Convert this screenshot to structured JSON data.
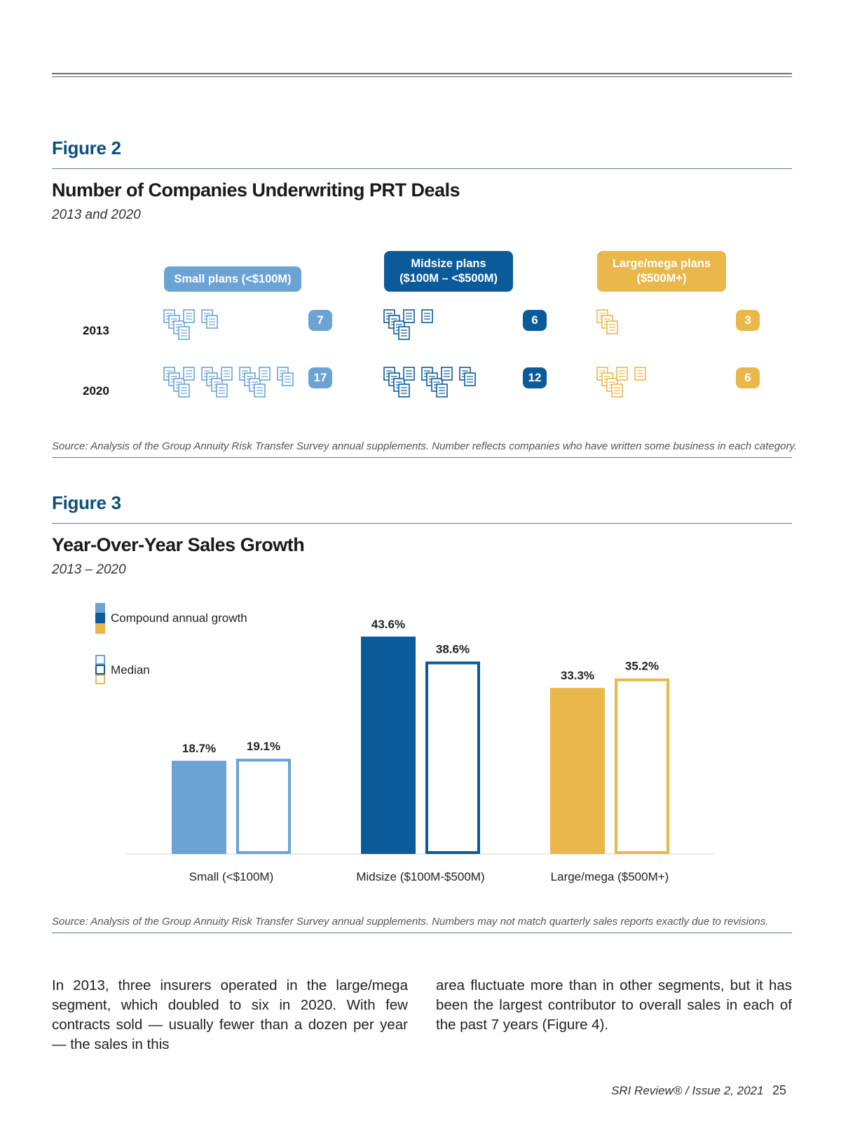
{
  "figure2": {
    "label": "Figure 2",
    "title": "Number of Companies Underwriting PRT Deals",
    "subtitle": "2013 and 2020",
    "categories": [
      {
        "label": "Small plans (<$100M)",
        "color": "#6aa3d4",
        "count_2013": "7",
        "count_2020": "17"
      },
      {
        "label": "Midsize plans\n($100M – <$500M)",
        "color": "#0b5b9a",
        "count_2013": "6",
        "count_2020": "12"
      },
      {
        "label": "Large/mega plans\n($500M+)",
        "color": "#eab84a",
        "count_2013": "3",
        "count_2020": "6"
      }
    ],
    "years": [
      "2013",
      "2020"
    ],
    "source": "Source: Analysis of the Group Annuity Risk Transfer Survey annual supplements. Number reflects companies who have written some business in each category."
  },
  "figure3": {
    "label": "Figure 3",
    "title": "Year-Over-Year Sales Growth",
    "subtitle": "2013 – 2020",
    "legend_cagr": "Compound annual growth",
    "legend_median": "Median",
    "source": "Source:  Analysis of the Group Annuity Risk Transfer Survey annual supplements. Numbers may not match quarterly sales reports exactly due to revisions."
  },
  "chart_data": {
    "type": "bar",
    "categories": [
      "Small (<$100M)",
      "Midsize ($100M-$500M)",
      "Large/mega ($500M+)"
    ],
    "series": [
      {
        "name": "Compound annual growth",
        "values": [
          18.7,
          43.6,
          33.3
        ],
        "labels": [
          "18.7%",
          "43.6%",
          "33.3%"
        ]
      },
      {
        "name": "Median",
        "values": [
          19.1,
          38.6,
          35.2
        ],
        "labels": [
          "19.1%",
          "38.6%",
          "35.2%"
        ]
      }
    ],
    "colors": [
      "#6aa3d4",
      "#0b5b9a",
      "#eab84a"
    ],
    "title": "Year-Over-Year Sales Growth",
    "ylim": [
      0,
      45
    ],
    "grid": false,
    "legend": "top-left"
  },
  "body": {
    "col1": "In 2013, three insurers operated in the large/mega segment, which doubled to six in 2020. With few contracts sold — usually fewer than a dozen per year — the sales in this",
    "col2": "area fluctuate more than in other segments, but it has been the largest contributor to overall sales in each of the past 7 years (Figure 4)."
  },
  "footer": {
    "publication": "SRI Review® / Issue 2, 2021",
    "page": "25"
  }
}
